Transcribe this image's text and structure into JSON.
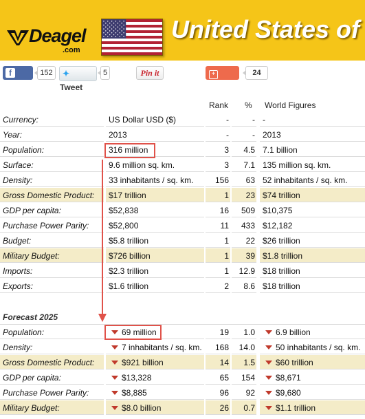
{
  "header": {
    "logo_text": "Deagel",
    "logo_domain": ".com",
    "title": "United States of",
    "flag_icon": "us-flag-icon",
    "brand_color": "#f5c518"
  },
  "social": {
    "like_label": "Like",
    "like_count": "152",
    "tweet_label": "Tweet",
    "tweet_count": "5",
    "pin_label": "Pin it",
    "share_label": "Share",
    "share_count": "24"
  },
  "columns": {
    "rank": "Rank",
    "pct": "%",
    "world": "World Figures"
  },
  "current_rows": [
    {
      "label": "Currency:",
      "value": "US Dollar USD ($)",
      "rank": "-",
      "pct": "-",
      "world": "-",
      "highlight": false
    },
    {
      "label": "Year:",
      "value": "2013",
      "rank": "-",
      "pct": "-",
      "world": "2013",
      "highlight": false
    },
    {
      "label": "Population:",
      "value": "316 million",
      "rank": "3",
      "pct": "4.5",
      "world": "7.1 billion",
      "highlight": false
    },
    {
      "label": "Surface:",
      "value": "9.6 million sq. km.",
      "rank": "3",
      "pct": "7.1",
      "world": "135 million sq. km.",
      "highlight": false
    },
    {
      "label": "Density:",
      "value": "33 inhabitants / sq. km.",
      "rank": "156",
      "pct": "63",
      "world": "52 inhabitants / sq. km.",
      "highlight": false
    },
    {
      "label": "Gross Domestic Product:",
      "value": "$17 trillion",
      "rank": "1",
      "pct": "23",
      "world": "$74 trillion",
      "highlight": true
    },
    {
      "label": "GDP per capita:",
      "value": "$52,838",
      "rank": "16",
      "pct": "509",
      "world": "$10,375",
      "highlight": false
    },
    {
      "label": "Purchase Power Parity:",
      "value": "$52,800",
      "rank": "11",
      "pct": "433",
      "world": "$12,182",
      "highlight": false
    },
    {
      "label": "Budget:",
      "value": "$5.8 trillion",
      "rank": "1",
      "pct": "22",
      "world": "$26 trillion",
      "highlight": false
    },
    {
      "label": "Military Budget:",
      "value": "$726 billion",
      "rank": "1",
      "pct": "39",
      "world": "$1.8 trillion",
      "highlight": true
    },
    {
      "label": "Imports:",
      "value": "$2.3 trillion",
      "rank": "1",
      "pct": "12.9",
      "world": "$18 trillion",
      "highlight": false
    },
    {
      "label": "Exports:",
      "value": "$1.6 trillion",
      "rank": "2",
      "pct": "8.6",
      "world": "$18 trillion",
      "highlight": false
    }
  ],
  "forecast": {
    "title": "Forecast 2025",
    "rows": [
      {
        "label": "Population:",
        "value": "69 million",
        "rank": "19",
        "pct": "1.0",
        "world": "6.9 billion",
        "highlight": false
      },
      {
        "label": "Density:",
        "value": "7 inhabitants / sq. km.",
        "rank": "168",
        "pct": "14.0",
        "world": "50 inhabitants / sq. km.",
        "highlight": false
      },
      {
        "label": "Gross Domestic Product:",
        "value": "$921 billion",
        "rank": "14",
        "pct": "1.5",
        "world": "$60 trillion",
        "highlight": true
      },
      {
        "label": "GDP per capita:",
        "value": "$13,328",
        "rank": "65",
        "pct": "154",
        "world": "$8,671",
        "highlight": false
      },
      {
        "label": "Purchase Power Parity:",
        "value": "$8,885",
        "rank": "96",
        "pct": "92",
        "world": "$9,680",
        "highlight": false
      },
      {
        "label": "Military Budget:",
        "value": "$8.0 billion",
        "rank": "26",
        "pct": "0.7",
        "world": "$1.1 trillion",
        "highlight": true
      }
    ]
  },
  "annotation_color": "#e0524a",
  "decline_icon": "triangle-down-icon"
}
